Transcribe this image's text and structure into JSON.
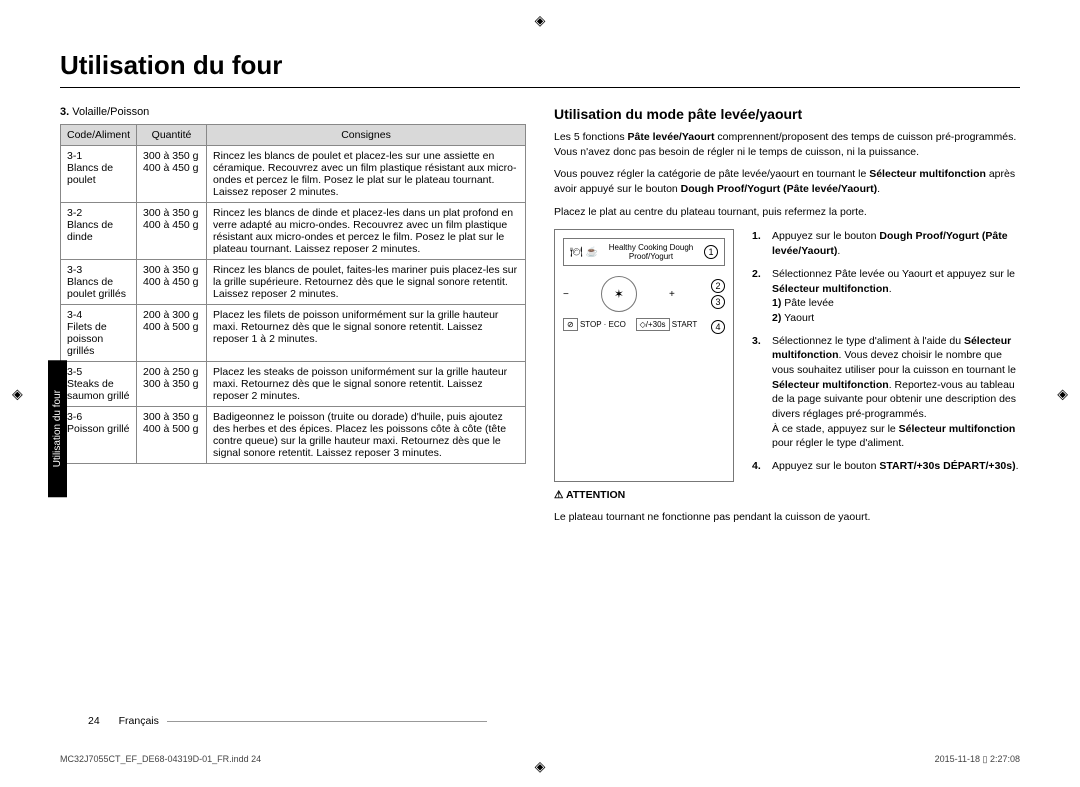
{
  "title": "Utilisation du four",
  "sideTab": "Utilisation du four",
  "section3": {
    "num": "3.",
    "label": "Volaille/Poisson"
  },
  "th": {
    "code": "Code/Aliment",
    "qty": "Quantité",
    "instr": "Consignes"
  },
  "rows": [
    {
      "code": "3-1\nBlancs de poulet",
      "qty": "300 à 350 g\n400 à 450 g",
      "instr": "Rincez les blancs de poulet et placez-les sur une assiette en céramique. Recouvrez avec un film plastique résistant aux micro-ondes et percez le film. Posez le plat sur le plateau tournant. Laissez reposer 2 minutes."
    },
    {
      "code": "3-2\nBlancs de dinde",
      "qty": "300 à 350 g\n400 à 450 g",
      "instr": "Rincez les blancs de dinde et placez-les dans un plat profond en verre adapté au micro-ondes. Recouvrez avec un film plastique résistant aux micro-ondes et percez le film. Posez le plat sur le plateau tournant. Laissez reposer 2 minutes."
    },
    {
      "code": "3-3\nBlancs de poulet grillés",
      "qty": "300 à 350 g\n400 à 450 g",
      "instr": "Rincez les blancs de poulet, faites-les mariner puis placez-les sur la grille supérieure. Retournez dès que le signal sonore retentit. Laissez reposer 2 minutes."
    },
    {
      "code": "3-4\nFilets de poisson grillés",
      "qty": "200 à 300 g\n400 à 500 g",
      "instr": "Placez les filets de poisson uniformément sur la grille hauteur maxi. Retournez dès que le signal sonore retentit. Laissez reposer 1 à 2 minutes."
    },
    {
      "code": "3-5\nSteaks de saumon grillé",
      "qty": "200 à 250 g\n300 à 350 g",
      "instr": "Placez les steaks de poisson uniformément sur la grille hauteur maxi. Retournez dès que le signal sonore retentit. Laissez reposer 2 minutes."
    },
    {
      "code": "3-6\nPoisson grillé",
      "qty": "300 à 350 g\n400 à 500 g",
      "instr": "Badigeonnez le poisson (truite ou dorade) d'huile, puis ajoutez des herbes et des épices. Placez les poissons côte à côte (tête contre queue) sur la grille hauteur maxi. Retournez dès que le signal sonore retentit. Laissez reposer 3 minutes."
    }
  ],
  "subheading": "Utilisation du mode pâte levée/yaourt",
  "p1a": "Les 5 fonctions ",
  "p1b": "Pâte levée/Yaourt",
  "p1c": " comprennent/proposent des temps de cuisson pré-programmés. Vous n'avez donc pas besoin de régler ni le temps de cuisson, ni la puissance.",
  "p2a": "Vous pouvez régler la catégorie de pâte levée/yaourt en tournant le ",
  "p2b": "Sélecteur multifonction",
  "p2c": " après avoir appuyé sur le bouton ",
  "p2d": "Dough Proof/Yogurt (Pâte levée/Yaourt)",
  "p2e": ".",
  "p3": "Placez le plat au centre du plateau tournant, puis refermez la porte.",
  "panel": {
    "topLine": "Healthy Cooking  Dough Proof/Yogurt",
    "stopEco": "STOP · ECO",
    "start": "START",
    "plus30": "/+30s",
    "b1": "1",
    "b2": "2",
    "b3": "3",
    "b4": "4"
  },
  "steps": {
    "s1n": "1.",
    "s1": "Appuyez sur le bouton Dough Proof/Yogurt (Pâte levée/Yaourt).",
    "s1bold1": "Dough Proof/Yogurt (Pâte levée/Yaourt)",
    "s2n": "2.",
    "s2": "Sélectionnez Pâte levée ou Yaourt et appuyez sur le Sélecteur multifonction.\n1) Pâte levée\n2) Yaourt",
    "s2bold": "Sélecteur multifonction",
    "s3n": "3.",
    "s3": "Sélectionnez le type d'aliment à l'aide du Sélecteur multifonction. Vous devez choisir le nombre que vous souhaitez utiliser pour la cuisson en tournant le Sélecteur multifonction. Reportez-vous au tableau de la page suivante pour obtenir une description des divers réglages pré-programmés.\nÀ ce stade, appuyez sur le Sélecteur multifonction pour régler le type d'aliment.",
    "s4n": "4.",
    "s4": "Appuyez sur le bouton START/+30s DÉPART/+30s).",
    "s4bold1": "START/+30s",
    "s4bold2": "DÉPART/+30s)"
  },
  "attentionLabel": "ATTENTION",
  "attentionText": "Le plateau tournant ne fonctionne pas pendant la cuisson de yaourt.",
  "pageNum": "24",
  "pageLang": "Français",
  "footerFile": "MC32J7055CT_EF_DE68-04319D-01_FR.indd   24",
  "footerDate": "2015-11-18   ▯ 2:27:08"
}
